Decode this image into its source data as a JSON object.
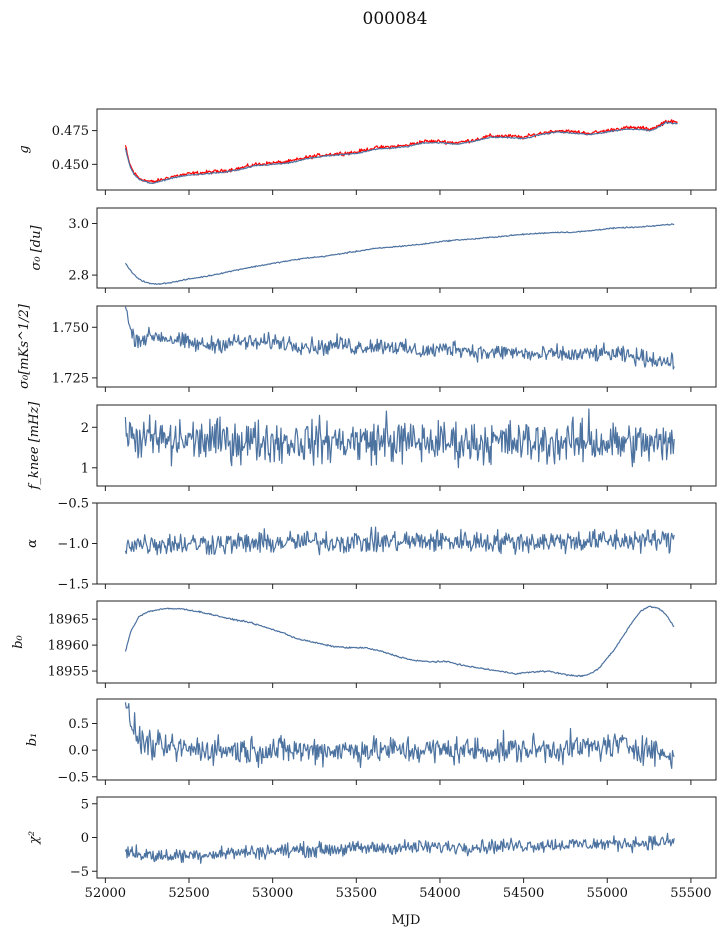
{
  "figure": {
    "title": "000084",
    "xlabel": "MJD"
  },
  "colors": {
    "model": "#4c72a0",
    "data": "#ff0000"
  },
  "chart_data": [
    {
      "type": "line",
      "ylabel": "g",
      "xlim": [
        51950,
        55650
      ],
      "ylim": [
        0.431,
        0.491
      ],
      "yticks": [
        0.45,
        0.475
      ],
      "ytick_labels": [
        "0.450",
        "0.475"
      ],
      "xticks": [
        52000,
        52500,
        53000,
        53500,
        54000,
        54500,
        55000,
        55500
      ],
      "series": [
        {
          "color": "#ff0000",
          "x": [
            52120,
            52135,
            52150,
            52170,
            52200,
            52240,
            52280,
            52320,
            52400,
            52500,
            52600,
            52700,
            52800,
            52900,
            53000,
            53100,
            53200,
            53300,
            53400,
            53500,
            53600,
            53700,
            53800,
            53900,
            54000,
            54100,
            54200,
            54300,
            54400,
            54500,
            54600,
            54700,
            54800,
            54900,
            55000,
            55100,
            55200,
            55250,
            55300,
            55350,
            55420
          ],
          "y": [
            0.464,
            0.455,
            0.449,
            0.444,
            0.44,
            0.438,
            0.437,
            0.438,
            0.441,
            0.443,
            0.444,
            0.445,
            0.447,
            0.45,
            0.451,
            0.452,
            0.455,
            0.457,
            0.458,
            0.459,
            0.462,
            0.463,
            0.464,
            0.467,
            0.467,
            0.466,
            0.468,
            0.471,
            0.471,
            0.47,
            0.473,
            0.475,
            0.474,
            0.473,
            0.475,
            0.477,
            0.477,
            0.476,
            0.478,
            0.482,
            0.481
          ],
          "noise": 0.0012
        },
        {
          "color": "#4c72a0",
          "x": [
            52120,
            52135,
            52150,
            52170,
            52200,
            52240,
            52280,
            52320,
            52400,
            52500,
            52600,
            52700,
            52800,
            52900,
            53000,
            53100,
            53200,
            53300,
            53400,
            53500,
            53600,
            53700,
            53800,
            53900,
            54000,
            54100,
            54200,
            54300,
            54400,
            54500,
            54600,
            54700,
            54800,
            54900,
            55000,
            55100,
            55200,
            55250,
            55300,
            55350,
            55420
          ],
          "y": [
            0.462,
            0.454,
            0.448,
            0.443,
            0.439,
            0.437,
            0.436,
            0.437,
            0.44,
            0.442,
            0.443,
            0.444,
            0.446,
            0.449,
            0.45,
            0.451,
            0.454,
            0.456,
            0.457,
            0.458,
            0.461,
            0.462,
            0.463,
            0.466,
            0.466,
            0.465,
            0.467,
            0.47,
            0.47,
            0.469,
            0.472,
            0.474,
            0.473,
            0.472,
            0.474,
            0.476,
            0.476,
            0.475,
            0.477,
            0.481,
            0.48
          ],
          "noise": 0.0004
        }
      ]
    },
    {
      "type": "line",
      "ylabel": "σ₀ [du]",
      "xlim": [
        51950,
        55650
      ],
      "ylim": [
        2.75,
        3.06
      ],
      "yticks": [
        2.8,
        3.0
      ],
      "ytick_labels": [
        "2.8",
        "3.0"
      ],
      "xticks": [
        52000,
        52500,
        53000,
        53500,
        54000,
        54500,
        55000,
        55500
      ],
      "series": [
        {
          "color": "#4c72a0",
          "x": [
            52120,
            52150,
            52180,
            52220,
            52260,
            52300,
            52350,
            52400,
            52500,
            52600,
            52700,
            52800,
            52900,
            53000,
            53100,
            53200,
            53300,
            53400,
            53500,
            53600,
            53700,
            53800,
            53900,
            54000,
            54100,
            54200,
            54300,
            54400,
            54500,
            54600,
            54700,
            54800,
            54900,
            55000,
            55100,
            55200,
            55300,
            55400
          ],
          "y": [
            2.845,
            2.818,
            2.795,
            2.778,
            2.768,
            2.765,
            2.768,
            2.772,
            2.785,
            2.795,
            2.808,
            2.822,
            2.834,
            2.845,
            2.856,
            2.866,
            2.872,
            2.882,
            2.892,
            2.902,
            2.908,
            2.914,
            2.92,
            2.93,
            2.936,
            2.94,
            2.946,
            2.952,
            2.958,
            2.962,
            2.966,
            2.966,
            2.972,
            2.98,
            2.984,
            2.986,
            2.992,
            2.998
          ],
          "noise": 0.002
        }
      ]
    },
    {
      "type": "line",
      "ylabel": "σ₀[mKs^1/2]",
      "xlim": [
        51950,
        55650
      ],
      "ylim": [
        1.7205,
        1.7605
      ],
      "yticks": [
        1.725,
        1.75
      ],
      "ytick_labels": [
        "1.725",
        "1.750"
      ],
      "xticks": [
        52000,
        52500,
        53000,
        53500,
        54000,
        54500,
        55000,
        55500
      ],
      "series": [
        {
          "color": "#4c72a0",
          "x": [
            52120,
            52140,
            52160,
            52200,
            52300,
            52400,
            52500,
            52600,
            52700,
            52800,
            52900,
            53000,
            53100,
            53200,
            53300,
            53400,
            53500,
            53600,
            53700,
            53800,
            53900,
            54000,
            54100,
            54200,
            54300,
            54400,
            54500,
            54600,
            54700,
            54800,
            54900,
            55000,
            55100,
            55200,
            55300,
            55400
          ],
          "y": [
            1.76,
            1.752,
            1.746,
            1.744,
            1.746,
            1.744,
            1.742,
            1.741,
            1.742,
            1.743,
            1.742,
            1.743,
            1.742,
            1.741,
            1.74,
            1.742,
            1.74,
            1.741,
            1.741,
            1.739,
            1.738,
            1.739,
            1.74,
            1.738,
            1.737,
            1.738,
            1.737,
            1.736,
            1.737,
            1.736,
            1.737,
            1.737,
            1.736,
            1.735,
            1.734,
            1.732
          ],
          "noise": 0.0035
        }
      ]
    },
    {
      "type": "line",
      "ylabel": "f_knee [mHz]",
      "xlim": [
        51950,
        55650
      ],
      "ylim": [
        0.55,
        2.55
      ],
      "yticks": [
        1,
        2
      ],
      "ytick_labels": [
        "1",
        "2"
      ],
      "xticks": [
        52000,
        52500,
        53000,
        53500,
        54000,
        54500,
        55000,
        55500
      ],
      "series": [
        {
          "color": "#4c72a0",
          "x": [
            52120,
            52300,
            52600,
            52900,
            53200,
            53500,
            53800,
            54100,
            54400,
            54700,
            55000,
            55200,
            55400
          ],
          "y": [
            1.75,
            1.7,
            1.68,
            1.66,
            1.65,
            1.65,
            1.64,
            1.63,
            1.63,
            1.62,
            1.62,
            1.6,
            1.55
          ],
          "noise": 0.45,
          "spikes": [
            [
              52120,
              2.25
            ],
            [
              52395,
              1.05
            ],
            [
              53680,
              2.4
            ],
            [
              54890,
              2.45
            ]
          ]
        }
      ]
    },
    {
      "type": "line",
      "ylabel": "α",
      "xlim": [
        51950,
        55650
      ],
      "ylim": [
        -1.5,
        -0.5
      ],
      "yticks": [
        -1.5,
        -1.0,
        -0.5
      ],
      "ytick_labels": [
        "−1.5",
        "−1.0",
        "−0.5"
      ],
      "xticks": [
        52000,
        52500,
        53000,
        53500,
        54000,
        54500,
        55000,
        55500
      ],
      "series": [
        {
          "color": "#4c72a0",
          "x": [
            52120,
            52400,
            52800,
            53200,
            53600,
            54000,
            54400,
            54800,
            55200,
            55400
          ],
          "y": [
            -1.0,
            -1.0,
            -1.0,
            -0.98,
            -0.98,
            -0.97,
            -0.98,
            -0.97,
            -0.96,
            -0.96
          ],
          "noise": 0.12
        }
      ]
    },
    {
      "type": "line",
      "ylabel": "b₀",
      "xlim": [
        51950,
        55650
      ],
      "ylim": [
        18952.7,
        18968.5
      ],
      "yticks": [
        18955,
        18960,
        18965
      ],
      "ytick_labels": [
        "18955",
        "18960",
        "18965"
      ],
      "xticks": [
        52000,
        52500,
        53000,
        53500,
        54000,
        54500,
        55000,
        55500
      ],
      "series": [
        {
          "color": "#4c72a0",
          "x": [
            52120,
            52150,
            52200,
            52260,
            52350,
            52450,
            52550,
            52650,
            52750,
            52850,
            52950,
            53050,
            53150,
            53250,
            53350,
            53450,
            53550,
            53650,
            53750,
            53850,
            53950,
            54050,
            54150,
            54250,
            54350,
            54450,
            54550,
            54650,
            54750,
            54850,
            54900,
            54950,
            55000,
            55050,
            55100,
            55150,
            55200,
            55250,
            55300,
            55350,
            55400
          ],
          "y": [
            18958.8,
            18962.5,
            18965.5,
            18966.5,
            18967.0,
            18967.0,
            18966.5,
            18965.8,
            18965.0,
            18964.5,
            18963.5,
            18962.5,
            18961.2,
            18960.5,
            18959.8,
            18959.5,
            18959.5,
            18958.8,
            18957.8,
            18957.0,
            18956.8,
            18956.8,
            18956.0,
            18955.5,
            18955.0,
            18954.5,
            18954.8,
            18955.0,
            18954.3,
            18954.0,
            18954.5,
            18955.5,
            18957.5,
            18959.5,
            18962.0,
            18964.5,
            18966.5,
            18967.5,
            18967.2,
            18966.0,
            18963.5
          ],
          "noise": 0.12
        }
      ]
    },
    {
      "type": "line",
      "ylabel": "b₁",
      "xlim": [
        51950,
        55650
      ],
      "ylim": [
        -0.56,
        0.96
      ],
      "yticks": [
        -0.5,
        0.0,
        0.5
      ],
      "ytick_labels": [
        "−0.5",
        "0.0",
        "0.5"
      ],
      "xticks": [
        52000,
        52500,
        53000,
        53500,
        54000,
        54500,
        55000,
        55500
      ],
      "series": [
        {
          "color": "#4c72a0",
          "x": [
            52120,
            52150,
            52200,
            52300,
            52500,
            52800,
            53100,
            53400,
            53700,
            54000,
            54300,
            54600,
            54900,
            55100,
            55250,
            55400
          ],
          "y": [
            0.78,
            0.55,
            0.2,
            0.05,
            0.02,
            0.0,
            0.0,
            0.0,
            0.0,
            0.0,
            0.0,
            0.02,
            0.05,
            0.1,
            0.02,
            -0.15
          ],
          "noise": 0.22
        }
      ]
    },
    {
      "type": "line",
      "ylabel": "χ²",
      "xlim": [
        51950,
        55650
      ],
      "ylim": [
        -6,
        6
      ],
      "yticks": [
        -5,
        0,
        5
      ],
      "ytick_labels": [
        "−5",
        "0",
        "5"
      ],
      "xticks": [
        52000,
        52500,
        53000,
        53500,
        54000,
        54500,
        55000,
        55500
      ],
      "xtick_labels": [
        "52000",
        "52500",
        "53000",
        "53500",
        "54000",
        "54500",
        "55000",
        "55500"
      ],
      "series": [
        {
          "color": "#4c72a0",
          "x": [
            52120,
            52200,
            52300,
            52500,
            52800,
            53100,
            53400,
            53700,
            54000,
            54300,
            54600,
            54900,
            55200,
            55400
          ],
          "y": [
            -2.0,
            -2.4,
            -2.8,
            -2.6,
            -2.2,
            -1.9,
            -1.7,
            -1.5,
            -1.4,
            -1.3,
            -1.1,
            -1.0,
            -0.8,
            -0.6
          ],
          "noise": 0.9
        }
      ]
    }
  ]
}
